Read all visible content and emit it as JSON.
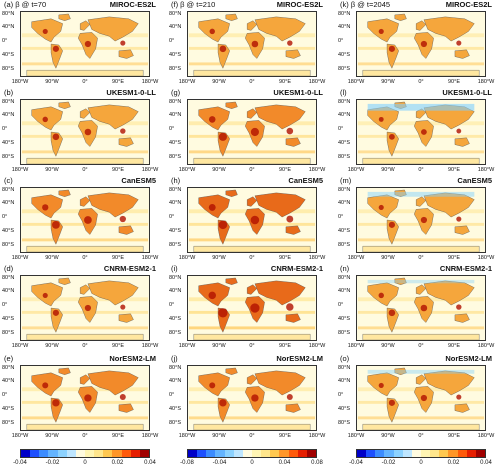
{
  "lat_labels": [
    "80°N",
    "40°N",
    "0°",
    "40°S",
    "80°S"
  ],
  "lon_labels": [
    "180°W",
    "90°W",
    "0°",
    "90°E",
    "180°W"
  ],
  "columns": [
    {
      "panels": [
        {
          "label": "(a)  β @ t=70",
          "model": "MIROC-ES2L",
          "intensity": 0.55,
          "cool": 0.05
        },
        {
          "label": "(b)",
          "model": "UKESM1-0-LL",
          "intensity": 0.6,
          "cool": 0.05
        },
        {
          "label": "(c)",
          "model": "CanESM5",
          "intensity": 0.75,
          "cool": 0.08
        },
        {
          "label": "(d)",
          "model": "CNRM-ESM2-1",
          "intensity": 0.55,
          "cool": 0.05
        },
        {
          "label": "(e)",
          "model": "NorESM2-LM",
          "intensity": 0.7,
          "cool": 0.05
        }
      ]
    },
    {
      "panels": [
        {
          "label": "(f)  β @ t=210",
          "model": "MIROC-ES2L",
          "intensity": 0.6,
          "cool": 0.03
        },
        {
          "label": "(g)",
          "model": "UKESM1-0-LL",
          "intensity": 0.8,
          "cool": 0.03
        },
        {
          "label": "(h)",
          "model": "CanESM5",
          "intensity": 0.85,
          "cool": 0.05
        },
        {
          "label": "(i)",
          "model": "CNRM-ESM2-1",
          "intensity": 0.95,
          "cool": 0.03
        },
        {
          "label": "(j)",
          "model": "NorESM2-LM",
          "intensity": 0.7,
          "cool": 0.03
        }
      ]
    },
    {
      "panels": [
        {
          "label": "(k)  β @ t=2045",
          "model": "MIROC-ES2L",
          "intensity": 0.55,
          "cool": 0.05
        },
        {
          "label": "(l)",
          "model": "UKESM1-0-LL",
          "intensity": 0.5,
          "cool": 0.5
        },
        {
          "label": "(m)",
          "model": "CanESM5",
          "intensity": 0.55,
          "cool": 0.3
        },
        {
          "label": "(n)",
          "model": "CNRM-ESM2-1",
          "intensity": 0.6,
          "cool": 0.15
        },
        {
          "label": "(o)",
          "model": "NorESM2-LM",
          "intensity": 0.55,
          "cool": 0.2
        }
      ]
    }
  ],
  "colorbars": [
    {
      "ticks": [
        "-0.04",
        "-0.02",
        "0",
        "0.02",
        "0.04"
      ]
    },
    {
      "ticks": [
        "-0.08",
        "-0.04",
        "0",
        "0.04",
        "0.08"
      ]
    },
    {
      "ticks": [
        "-0.04",
        "-0.02",
        "0",
        "0.02",
        "0.04"
      ]
    }
  ],
  "colorbar_colors": [
    "#0000c8",
    "#1e50ff",
    "#3c8cff",
    "#64b4ff",
    "#8cd2ff",
    "#bee6ff",
    "#fffbe0",
    "#fff5b4",
    "#ffe68c",
    "#ffc850",
    "#ff9628",
    "#ff5a0a",
    "#e61e00",
    "#a00000"
  ]
}
